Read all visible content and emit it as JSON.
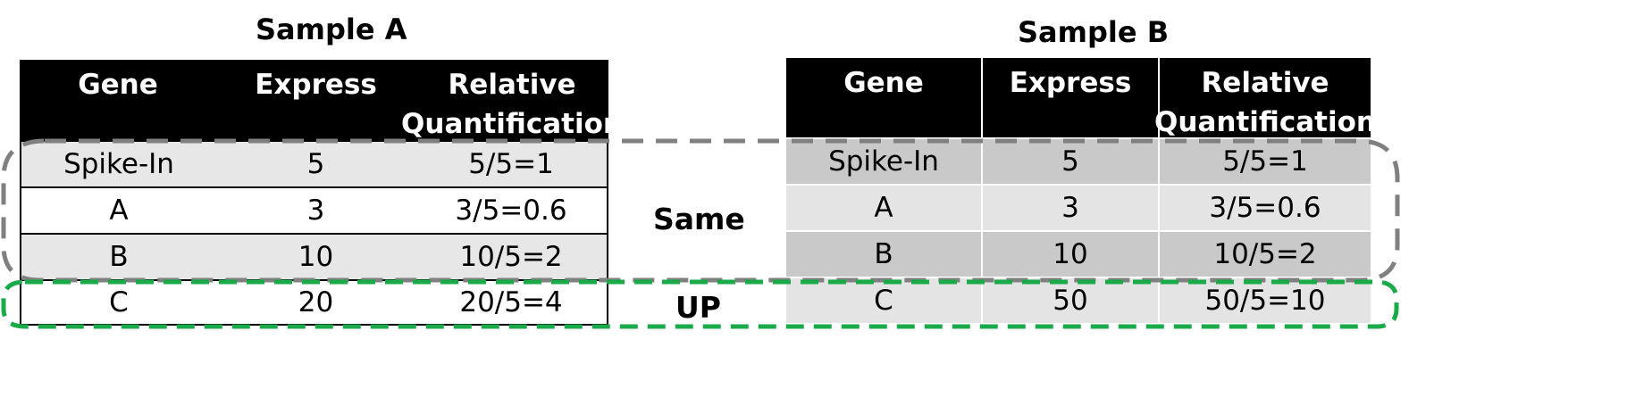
{
  "sample_a": {
    "title": "Sample A",
    "headers": [
      "Gene",
      "Express",
      "Relative\nQuantification"
    ],
    "rows": [
      [
        "Spike-In",
        "5",
        "5/5=1"
      ],
      [
        "A",
        "3",
        "3/5=0.6"
      ],
      [
        "B",
        "10",
        "10/5=2"
      ],
      [
        "C",
        "20",
        "20/5=4"
      ]
    ]
  },
  "sample_b": {
    "title": "Sample B",
    "headers": [
      "Gene",
      "Express",
      "Relative\nQuantification"
    ],
    "rows": [
      [
        "Spike-In",
        "5",
        "5/5=1"
      ],
      [
        "A",
        "3",
        "3/5=0.6"
      ],
      [
        "B",
        "10",
        "10/5=2"
      ],
      [
        "C",
        "50",
        "50/5=10"
      ]
    ]
  },
  "labels": {
    "same": "Same",
    "up": "UP"
  },
  "colors": {
    "header_bg": "#000000",
    "same_box": "#808080",
    "up_box": "#1aaa4a",
    "a_row_dark": "#e7e7e7",
    "b_row_dark": "#c9c9c9",
    "b_row_light": "#e4e4e4"
  }
}
